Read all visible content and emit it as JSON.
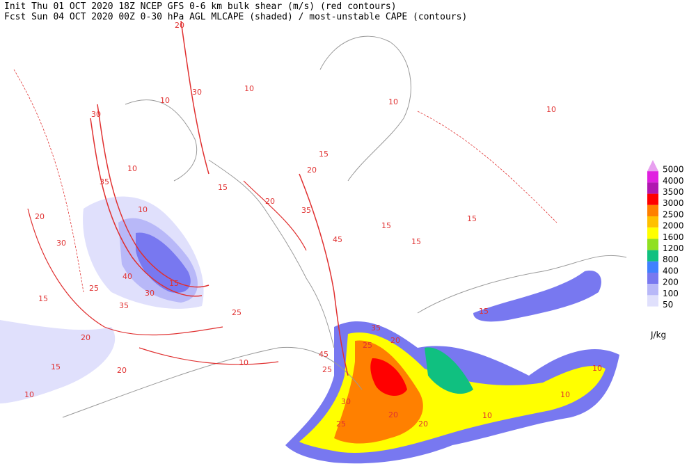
{
  "header": {
    "line1": "Init  Thu 01 OCT 2020 18Z  NCEP GFS 0-6 km bulk shear (m/s) (red contours)",
    "line2": "Fcst Sun 04 OCT 2020 00Z  0-30 hPa AGL MLCAPE (shaded) / most-unstable CAPE (contours)"
  },
  "legend": {
    "unit": "J/kg",
    "levels": [
      {
        "label": "5000",
        "color": "#e8a0f0"
      },
      {
        "label": "4000",
        "color": "#e020e0"
      },
      {
        "label": "3500",
        "color": "#b018b0"
      },
      {
        "label": "3000",
        "color": "#ff0000"
      },
      {
        "label": "2500",
        "color": "#ff8000"
      },
      {
        "label": "2000",
        "color": "#ffc000"
      },
      {
        "label": "1600",
        "color": "#ffff00"
      },
      {
        "label": "1200",
        "color": "#90e020"
      },
      {
        "label": "800",
        "color": "#10c080"
      },
      {
        "label": "400",
        "color": "#4080ff"
      },
      {
        "label": "200",
        "color": "#7878f0"
      },
      {
        "label": "100",
        "color": "#b8b8f8"
      },
      {
        "label": "50",
        "color": "#e0e0fc"
      }
    ]
  },
  "contour_labels": [
    "20",
    "30",
    "10",
    "10",
    "30",
    "35",
    "10",
    "20",
    "30",
    "10",
    "40",
    "30",
    "15",
    "25",
    "35",
    "15",
    "20",
    "15",
    "10",
    "20",
    "25",
    "45",
    "30",
    "25",
    "20",
    "20",
    "10",
    "10",
    "10",
    "15",
    "15",
    "10",
    "10",
    "15",
    "20",
    "35",
    "45",
    "15",
    "15",
    "35",
    "25",
    "20",
    "15",
    "20",
    "25",
    "10"
  ]
}
